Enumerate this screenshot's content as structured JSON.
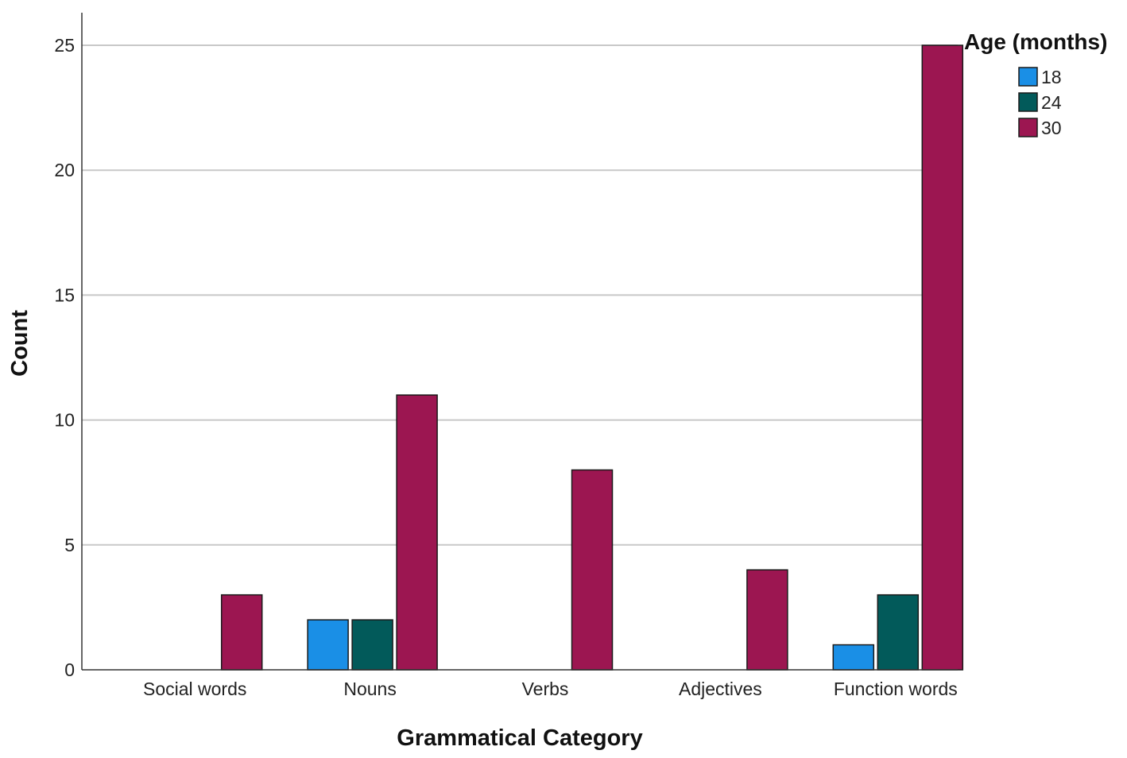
{
  "chart_data": {
    "type": "bar",
    "xlabel": "Grammatical Category",
    "ylabel": "Count",
    "ylim": [
      0,
      25
    ],
    "yticks": [
      0,
      5,
      10,
      15,
      20,
      25
    ],
    "grid": true,
    "legend": {
      "title": "Age (months)",
      "placement": "top-right"
    },
    "categories": [
      "Social words",
      "Nouns",
      "Verbs",
      "Adjectives",
      "Function words"
    ],
    "series": [
      {
        "name": "18",
        "color": "#1a8fe6",
        "values": [
          0,
          2,
          0,
          0,
          1
        ]
      },
      {
        "name": "24",
        "color": "#025a5a",
        "values": [
          0,
          2,
          0,
          0,
          3
        ]
      },
      {
        "name": "30",
        "color": "#9c1651",
        "values": [
          3,
          11,
          8,
          4,
          25
        ]
      }
    ]
  }
}
